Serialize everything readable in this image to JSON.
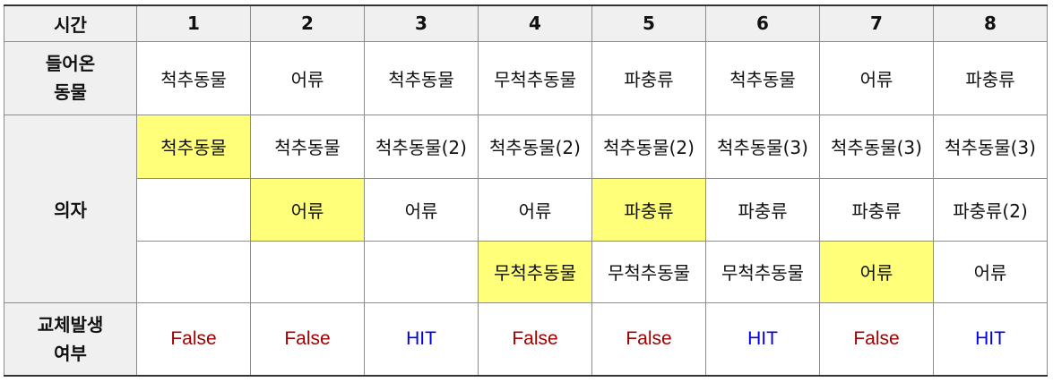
{
  "header": {
    "time_label": "시간",
    "columns": [
      "1",
      "2",
      "3",
      "4",
      "5",
      "6",
      "7",
      "8"
    ]
  },
  "arrived": {
    "label_line1": "들어온",
    "label_line2": "동물",
    "values": [
      "척추동물",
      "어류",
      "척추동물",
      "무척추동물",
      "파충류",
      "척추동물",
      "어류",
      "파충류"
    ]
  },
  "chairs": {
    "label": "의자",
    "rows": [
      [
        "척추동물",
        "척추동물",
        "척추동물(2)",
        "척추동물(2)",
        "척추동물(2)",
        "척추동물(3)",
        "척추동물(3)",
        "척추동물(3)"
      ],
      [
        "",
        "어류",
        "어류",
        "어류",
        "파충류",
        "파충류",
        "파충류",
        "파충류(2)"
      ],
      [
        "",
        "",
        "",
        "무척추동물",
        "무척추동물",
        "무척추동물",
        "어류",
        "어류"
      ]
    ],
    "highlighted": [
      {
        "row": 0,
        "col": 0
      },
      {
        "row": 1,
        "col": 1
      },
      {
        "row": 1,
        "col": 4
      },
      {
        "row": 2,
        "col": 3
      },
      {
        "row": 2,
        "col": 6
      }
    ],
    "highlight_color": "#ffff7a"
  },
  "replacement": {
    "label_line1": "교체발생",
    "label_line2": "여부",
    "values": [
      "False",
      "False",
      "HIT",
      "False",
      "False",
      "HIT",
      "False",
      "HIT"
    ],
    "false_color": "#a00000",
    "hit_color": "#0000e0"
  }
}
